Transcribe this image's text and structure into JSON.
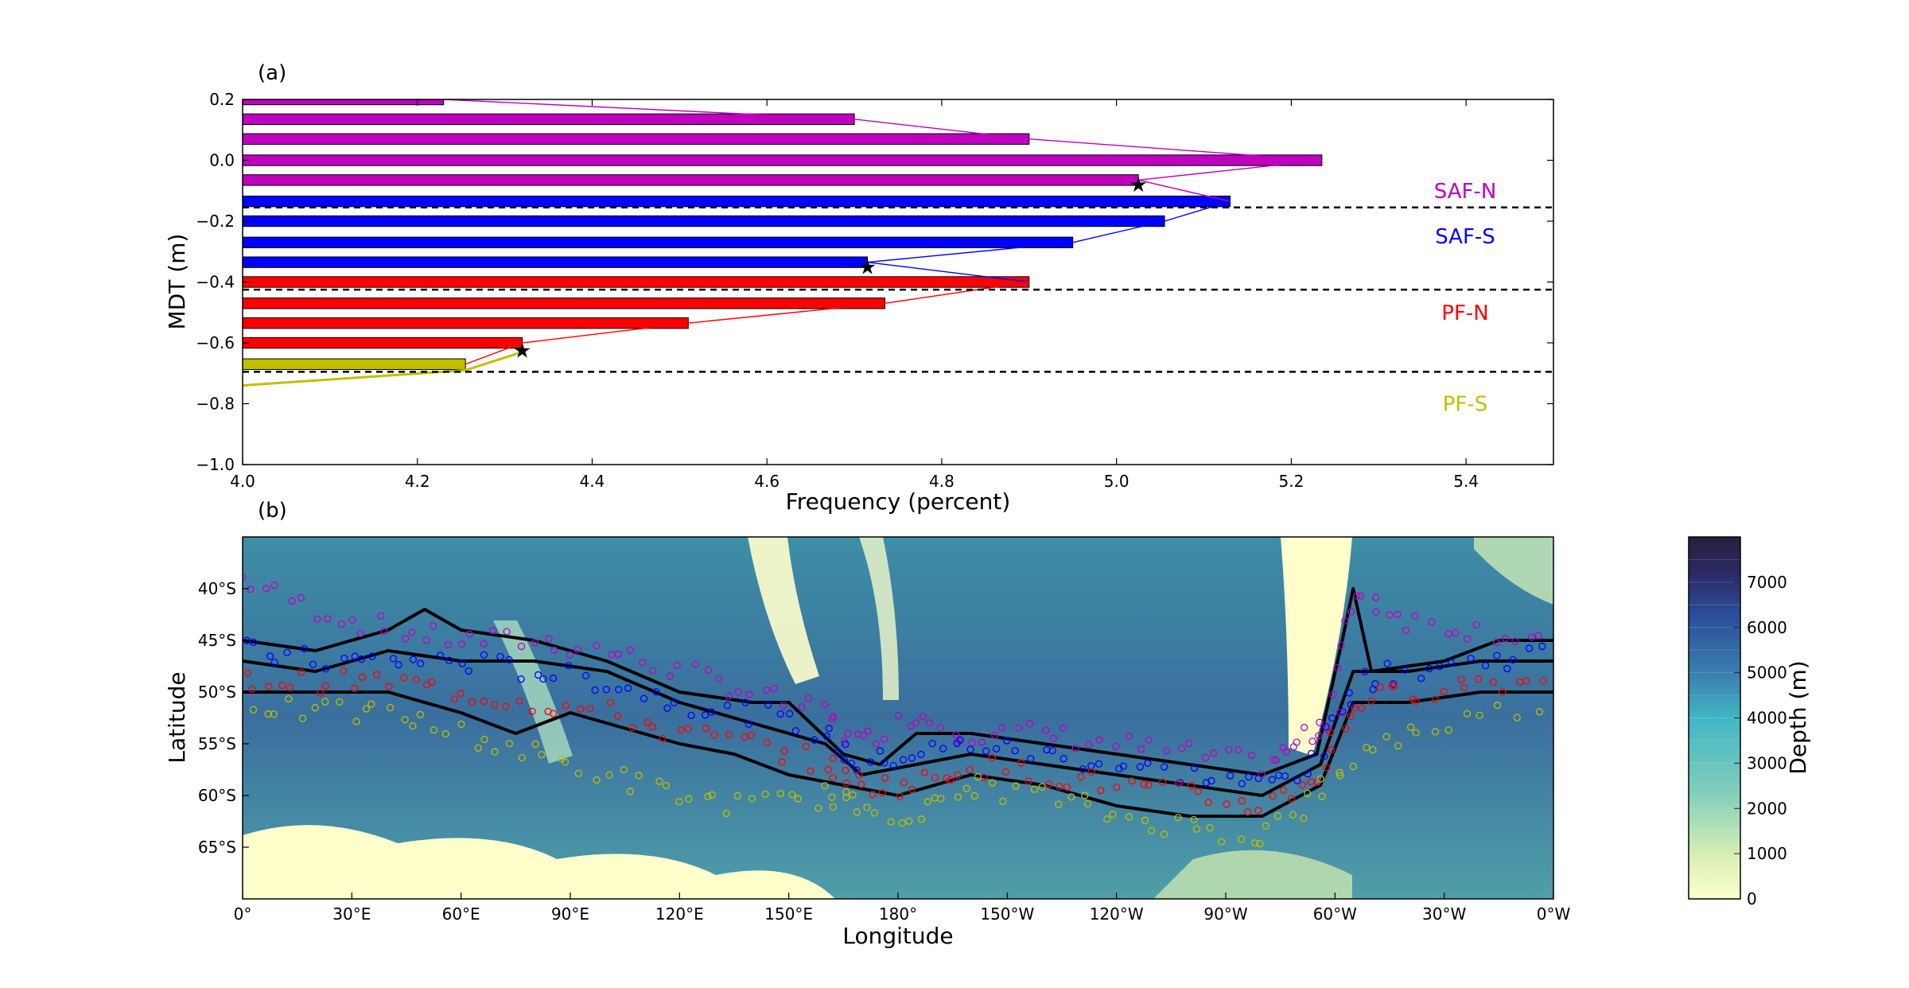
{
  "chart_data": [
    {
      "panel_label": "(a)",
      "type": "bar",
      "orientation": "horizontal",
      "xlabel": "Frequency (percent)",
      "ylabel": "MDT (m)",
      "xlim": [
        4.0,
        5.5
      ],
      "ylim": [
        -1.0,
        0.2
      ],
      "xticks": [
        "4.0",
        "4.2",
        "4.4",
        "4.6",
        "4.8",
        "5.0",
        "5.2",
        "5.4"
      ],
      "yticks": [
        "0.2",
        "0.0",
        "−0.2",
        "−0.4",
        "−0.6",
        "−0.8",
        "−1.0"
      ],
      "bar_height": 0.035,
      "bars": [
        {
          "mdt": 0.2,
          "freq": 4.23,
          "group": "SAF-N"
        },
        {
          "mdt": 0.135,
          "freq": 4.7,
          "group": "SAF-N"
        },
        {
          "mdt": 0.07,
          "freq": 4.9,
          "group": "SAF-N"
        },
        {
          "mdt": 0.0,
          "freq": 5.235,
          "group": "SAF-N"
        },
        {
          "mdt": -0.065,
          "freq": 5.025,
          "group": "SAF-N"
        },
        {
          "mdt": -0.135,
          "freq": 5.13,
          "group": "SAF-S"
        },
        {
          "mdt": -0.2,
          "freq": 5.055,
          "group": "SAF-S"
        },
        {
          "mdt": -0.27,
          "freq": 4.95,
          "group": "SAF-S"
        },
        {
          "mdt": -0.335,
          "freq": 4.715,
          "group": "SAF-S"
        },
        {
          "mdt": -0.4,
          "freq": 4.9,
          "group": "PF-N"
        },
        {
          "mdt": -0.47,
          "freq": 4.735,
          "group": "PF-N"
        },
        {
          "mdt": -0.535,
          "freq": 4.51,
          "group": "PF-N"
        },
        {
          "mdt": -0.6,
          "freq": 4.32,
          "group": "PF-N"
        },
        {
          "mdt": -0.67,
          "freq": 4.255,
          "group": "PF-S"
        }
      ],
      "group_lines": [
        {
          "group": "SAF-N",
          "points": [
            [
              4.23,
              0.2
            ],
            [
              4.7,
              0.135
            ],
            [
              4.9,
              0.07
            ],
            [
              5.235,
              0.0
            ],
            [
              5.025,
              -0.065
            ],
            [
              5.13,
              -0.135
            ]
          ]
        },
        {
          "group": "SAF-S",
          "points": [
            [
              5.13,
              -0.135
            ],
            [
              5.055,
              -0.2
            ],
            [
              4.95,
              -0.27
            ],
            [
              4.715,
              -0.335
            ],
            [
              4.9,
              -0.4
            ]
          ]
        },
        {
          "group": "PF-N",
          "points": [
            [
              4.9,
              -0.4
            ],
            [
              4.735,
              -0.47
            ],
            [
              4.51,
              -0.535
            ],
            [
              4.32,
              -0.6
            ],
            [
              4.255,
              -0.67
            ]
          ]
        },
        {
          "group": "PF-S",
          "points": [
            [
              4.32,
              -0.63
            ],
            [
              4.255,
              -0.69
            ],
            [
              4.0,
              -0.74
            ]
          ]
        }
      ],
      "stars": [
        {
          "freq": 5.025,
          "mdt": -0.08
        },
        {
          "freq": 4.715,
          "mdt": -0.35
        },
        {
          "freq": 4.32,
          "mdt": -0.625
        }
      ],
      "thresholds": [
        -0.155,
        -0.425,
        -0.695
      ],
      "region_labels": [
        {
          "text": "SAF-N",
          "mdt": -0.1,
          "color_key": "SAF-N"
        },
        {
          "text": "SAF-S",
          "mdt": -0.25,
          "color_key": "SAF-S"
        },
        {
          "text": "PF-N",
          "mdt": -0.5,
          "color_key": "PF-N"
        },
        {
          "text": "PF-S",
          "mdt": -0.8,
          "color_key": "PF-S"
        }
      ],
      "colors": {
        "SAF-N": "#bf00bf",
        "SAF-S": "#0000ff",
        "PF-N": "#ff0000",
        "PF-S": "#bfbf00"
      }
    },
    {
      "panel_label": "(b)",
      "type": "map",
      "xlabel": "Longitude",
      "ylabel": "Latitude",
      "xlim": [
        0,
        360
      ],
      "ylim": [
        -70,
        -35
      ],
      "xticks": [
        {
          "lon": 0,
          "label": "0°"
        },
        {
          "lon": 30,
          "label": "30°E"
        },
        {
          "lon": 60,
          "label": "60°E"
        },
        {
          "lon": 90,
          "label": "90°E"
        },
        {
          "lon": 120,
          "label": "120°E"
        },
        {
          "lon": 150,
          "label": "150°E"
        },
        {
          "lon": 180,
          "label": "180°"
        },
        {
          "lon": 210,
          "label": "150°W"
        },
        {
          "lon": 240,
          "label": "120°W"
        },
        {
          "lon": 270,
          "label": "90°W"
        },
        {
          "lon": 300,
          "label": "60°W"
        },
        {
          "lon": 330,
          "label": "30°W"
        },
        {
          "lon": 360,
          "label": "0°W"
        }
      ],
      "yticks": [
        {
          "lat": -40,
          "label": "40°S"
        },
        {
          "lat": -45,
          "label": "45°S"
        },
        {
          "lat": -50,
          "label": "50°S"
        },
        {
          "lat": -55,
          "label": "55°S"
        },
        {
          "lat": -60,
          "label": "60°S"
        },
        {
          "lat": -65,
          "label": "65°S"
        }
      ],
      "fronts": [
        {
          "name": "SAF-N",
          "points": [
            [
              0,
              -39
            ],
            [
              20,
              -42
            ],
            [
              40,
              -44
            ],
            [
              60,
              -45
            ],
            [
              80,
              -45
            ],
            [
              100,
              -46
            ],
            [
              120,
              -48
            ],
            [
              140,
              -50
            ],
            [
              160,
              -52
            ],
            [
              170,
              -55
            ],
            [
              185,
              -52
            ],
            [
              200,
              -54
            ],
            [
              220,
              -54
            ],
            [
              240,
              -55
            ],
            [
              260,
              -56
            ],
            [
              280,
              -57
            ],
            [
              290,
              -55
            ],
            [
              300,
              -52
            ],
            [
              305,
              -40
            ],
            [
              320,
              -43
            ],
            [
              340,
              -44
            ],
            [
              360,
              -45
            ]
          ]
        },
        {
          "name": "SAF-S",
          "points": [
            [
              0,
              -46
            ],
            [
              20,
              -47
            ],
            [
              40,
              -47
            ],
            [
              60,
              -47
            ],
            [
              80,
              -48
            ],
            [
              100,
              -49
            ],
            [
              120,
              -51
            ],
            [
              140,
              -52
            ],
            [
              160,
              -54
            ],
            [
              170,
              -57
            ],
            [
              185,
              -56
            ],
            [
              200,
              -55
            ],
            [
              220,
              -56
            ],
            [
              240,
              -57
            ],
            [
              260,
              -58
            ],
            [
              280,
              -59
            ],
            [
              295,
              -57
            ],
            [
              305,
              -49
            ],
            [
              320,
              -48
            ],
            [
              340,
              -47
            ],
            [
              360,
              -46
            ]
          ]
        },
        {
          "name": "PF-N",
          "points": [
            [
              0,
              -49
            ],
            [
              20,
              -49
            ],
            [
              40,
              -49
            ],
            [
              60,
              -50
            ],
            [
              80,
              -51
            ],
            [
              100,
              -52
            ],
            [
              120,
              -54
            ],
            [
              140,
              -55
            ],
            [
              160,
              -57
            ],
            [
              170,
              -59
            ],
            [
              185,
              -59
            ],
            [
              200,
              -57
            ],
            [
              220,
              -58
            ],
            [
              240,
              -59
            ],
            [
              260,
              -60
            ],
            [
              280,
              -61
            ],
            [
              295,
              -58
            ],
            [
              305,
              -51
            ],
            [
              320,
              -50
            ],
            [
              340,
              -49
            ],
            [
              360,
              -49
            ]
          ]
        },
        {
          "name": "PF-S",
          "points": [
            [
              0,
              -51
            ],
            [
              20,
              -52
            ],
            [
              40,
              -52
            ],
            [
              60,
              -54
            ],
            [
              80,
              -56
            ],
            [
              100,
              -58
            ],
            [
              120,
              -60
            ],
            [
              140,
              -61
            ],
            [
              160,
              -60
            ],
            [
              170,
              -61
            ],
            [
              185,
              -62
            ],
            [
              200,
              -59
            ],
            [
              220,
              -60
            ],
            [
              240,
              -62
            ],
            [
              260,
              -63
            ],
            [
              280,
              -64
            ],
            [
              295,
              -60
            ],
            [
              310,
              -55
            ],
            [
              330,
              -53
            ],
            [
              360,
              -51
            ]
          ]
        }
      ],
      "contours": [
        [
          [
            0,
            -45
          ],
          [
            20,
            -46
          ],
          [
            40,
            -44
          ],
          [
            50,
            -42
          ],
          [
            60,
            -44
          ],
          [
            80,
            -45
          ],
          [
            100,
            -47
          ],
          [
            120,
            -50
          ],
          [
            140,
            -51
          ],
          [
            150,
            -51
          ],
          [
            165,
            -56
          ],
          [
            175,
            -57
          ],
          [
            185,
            -54
          ],
          [
            200,
            -54
          ],
          [
            220,
            -55
          ],
          [
            240,
            -56
          ],
          [
            260,
            -57
          ],
          [
            280,
            -58
          ],
          [
            295,
            -56
          ],
          [
            302,
            -45
          ],
          [
            305,
            -40
          ],
          [
            310,
            -48
          ],
          [
            330,
            -47
          ],
          [
            345,
            -45
          ],
          [
            360,
            -45
          ]
        ],
        [
          [
            0,
            -47
          ],
          [
            20,
            -48
          ],
          [
            40,
            -46
          ],
          [
            60,
            -47
          ],
          [
            80,
            -47
          ],
          [
            100,
            -48
          ],
          [
            120,
            -51
          ],
          [
            140,
            -53
          ],
          [
            160,
            -55
          ],
          [
            170,
            -58
          ],
          [
            185,
            -57
          ],
          [
            200,
            -56
          ],
          [
            220,
            -57
          ],
          [
            240,
            -58
          ],
          [
            260,
            -59
          ],
          [
            280,
            -60
          ],
          [
            296,
            -57
          ],
          [
            305,
            -48
          ],
          [
            320,
            -48
          ],
          [
            340,
            -47
          ],
          [
            360,
            -47
          ]
        ],
        [
          [
            0,
            -50
          ],
          [
            20,
            -50
          ],
          [
            40,
            -50
          ],
          [
            60,
            -52
          ],
          [
            75,
            -54
          ],
          [
            90,
            -52
          ],
          [
            100,
            -53
          ],
          [
            120,
            -55
          ],
          [
            135,
            -56
          ],
          [
            150,
            -58
          ],
          [
            165,
            -59
          ],
          [
            180,
            -60
          ],
          [
            200,
            -58
          ],
          [
            220,
            -59
          ],
          [
            240,
            -61
          ],
          [
            260,
            -62
          ],
          [
            280,
            -62
          ],
          [
            296,
            -59
          ],
          [
            305,
            -51
          ],
          [
            320,
            -51
          ],
          [
            340,
            -50
          ],
          [
            360,
            -50
          ]
        ]
      ],
      "colorbar": {
        "label": "Depth (m)",
        "ticks": [
          "0",
          "1000",
          "2000",
          "3000",
          "4000",
          "5000",
          "6000",
          "7000"
        ],
        "range": [
          0,
          8000
        ]
      }
    }
  ]
}
